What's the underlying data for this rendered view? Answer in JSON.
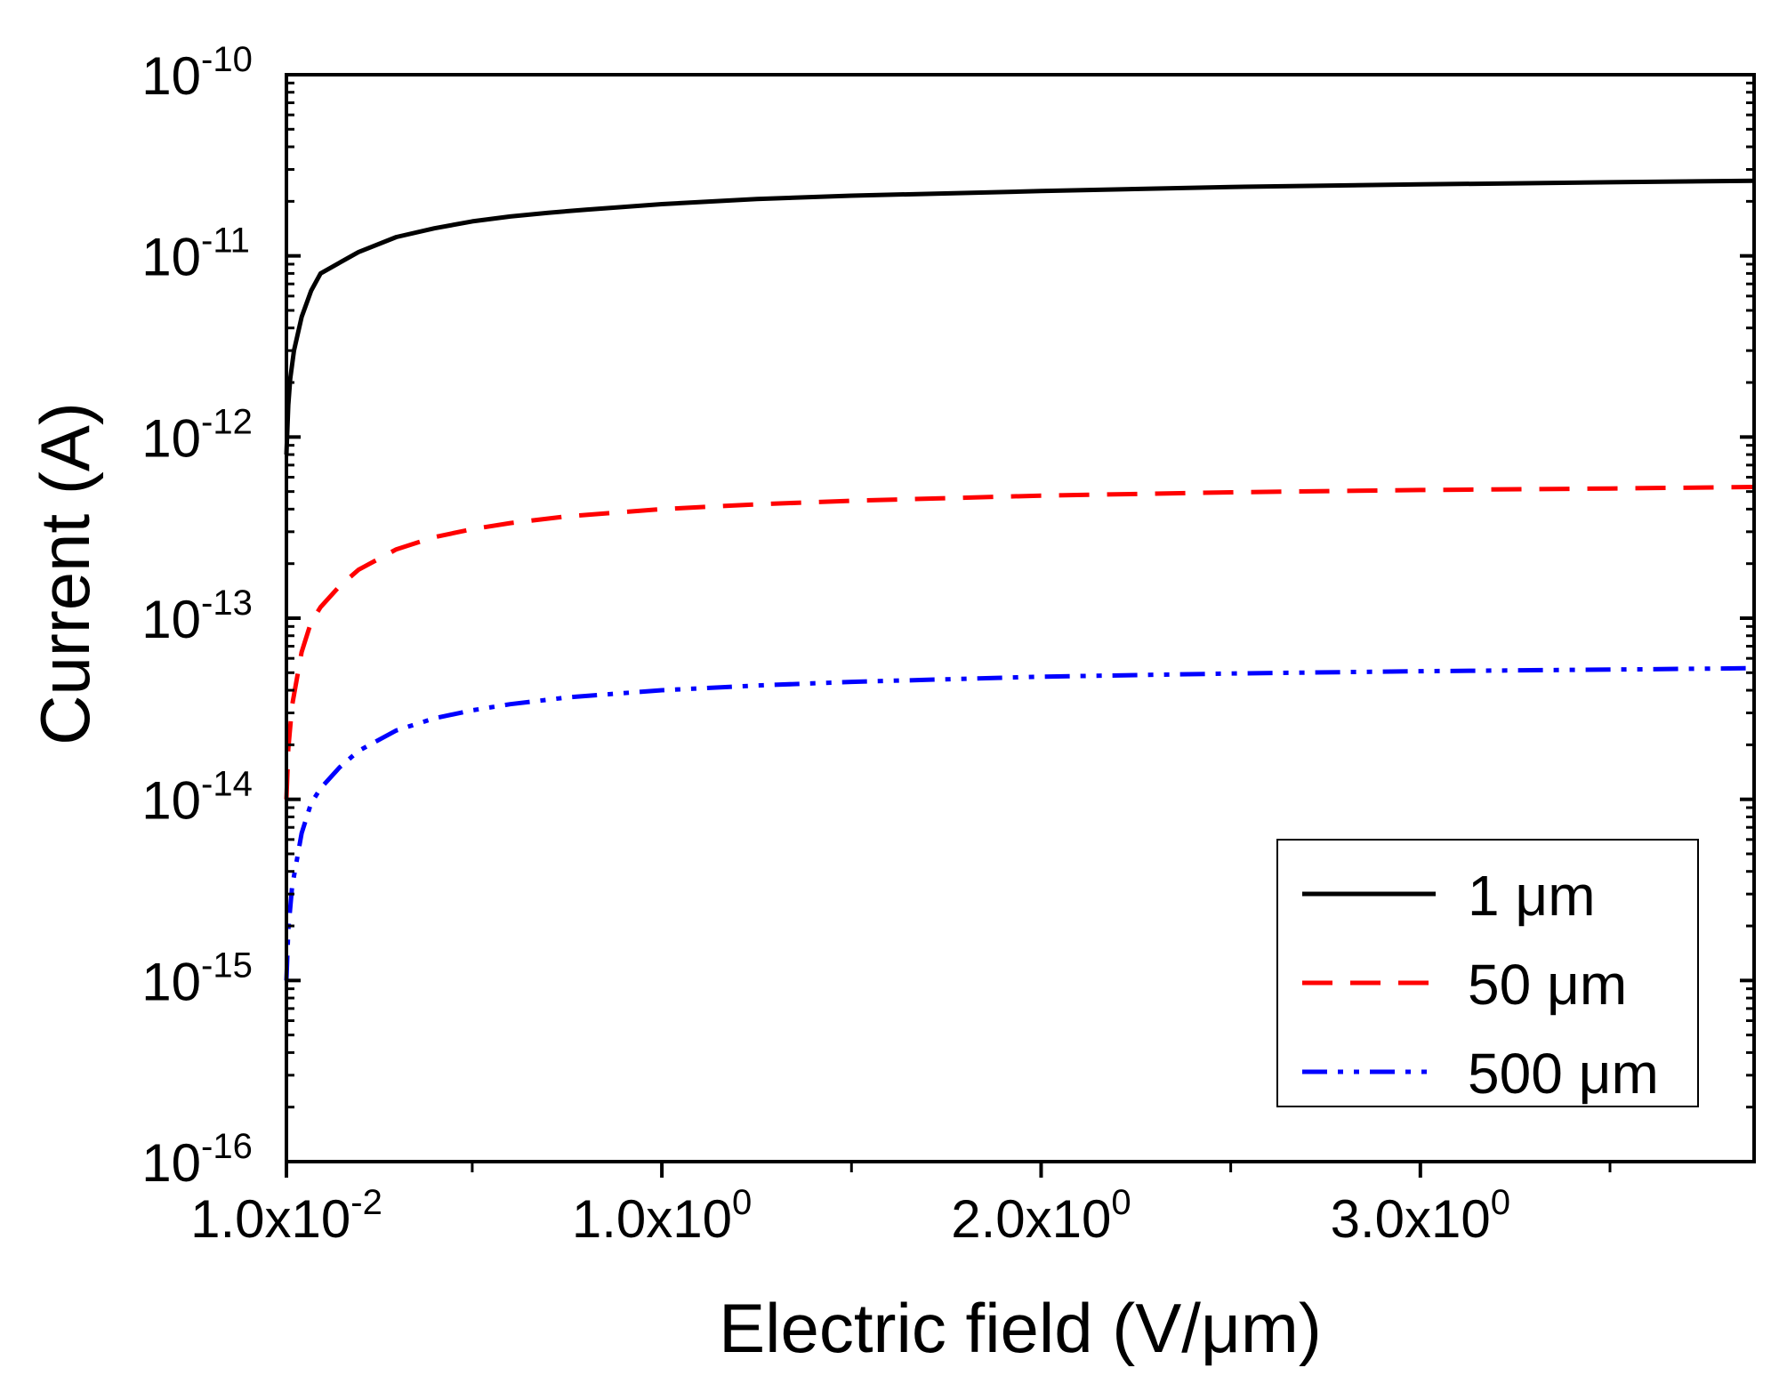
{
  "chart_data": {
    "type": "line",
    "title": "",
    "xlabel": "Electric field (V/μm)",
    "ylabel": "Current (A)",
    "xscale": "linear",
    "yscale": "log",
    "xlim": [
      0.01,
      3.88
    ],
    "ylim": [
      1e-16,
      1e-10
    ],
    "x_ticks": [
      {
        "value": 0.01,
        "mantissa": "1.0x10",
        "exp": "-2"
      },
      {
        "value": 1.0,
        "mantissa": "1.0x10",
        "exp": "0"
      },
      {
        "value": 2.0,
        "mantissa": "2.0x10",
        "exp": "0"
      },
      {
        "value": 3.0,
        "mantissa": "3.0x10",
        "exp": "0"
      }
    ],
    "y_ticks": [
      {
        "value": 1e-16,
        "mantissa": "10",
        "exp": "-16"
      },
      {
        "value": 1e-15,
        "mantissa": "10",
        "exp": "-15"
      },
      {
        "value": 1e-14,
        "mantissa": "10",
        "exp": "-14"
      },
      {
        "value": 1e-13,
        "mantissa": "10",
        "exp": "-13"
      },
      {
        "value": 1e-12,
        "mantissa": "10",
        "exp": "-12"
      },
      {
        "value": 1e-11,
        "mantissa": "10",
        "exp": "-11"
      },
      {
        "value": 1e-10,
        "mantissa": "10",
        "exp": "-10"
      }
    ],
    "legend_position": "bottom-right",
    "series": [
      {
        "name": "1 μm",
        "color": "#000000",
        "dash": "solid",
        "x": [
          0.01,
          0.015,
          0.02,
          0.03,
          0.05,
          0.075,
          0.1,
          0.2,
          0.3,
          0.4,
          0.5,
          0.6,
          0.7,
          0.8,
          1.0,
          1.25,
          1.5,
          2.0,
          2.5,
          3.0,
          3.5,
          3.88
        ],
        "y": [
          8e-13,
          1.5e-12,
          2.1e-12,
          3e-12,
          4.6e-12,
          6.4e-12,
          8e-12,
          1.05e-11,
          1.27e-11,
          1.42e-11,
          1.55e-11,
          1.65e-11,
          1.73e-11,
          1.8e-11,
          1.93e-11,
          2.06e-11,
          2.15e-11,
          2.28e-11,
          2.4e-11,
          2.48e-11,
          2.55e-11,
          2.6e-11
        ]
      },
      {
        "name": "50 μm",
        "color": "#ff0000",
        "dash": "dash",
        "x": [
          0.01,
          0.015,
          0.025,
          0.05,
          0.075,
          0.1,
          0.15,
          0.2,
          0.3,
          0.4,
          0.5,
          0.6,
          0.75,
          1.0,
          1.25,
          1.5,
          2.0,
          2.5,
          3.0,
          3.5,
          3.88
        ],
        "y": [
          1e-14,
          1.9e-14,
          3.3e-14,
          6.5e-14,
          9.5e-14,
          1.15e-13,
          1.5e-13,
          1.85e-13,
          2.4e-13,
          2.8e-13,
          3.1e-13,
          3.35e-13,
          3.65e-13,
          4e-13,
          4.25e-13,
          4.45e-13,
          4.75e-13,
          4.95e-13,
          5.1e-13,
          5.2e-13,
          5.3e-13
        ]
      },
      {
        "name": "500 μm",
        "color": "#0000ff",
        "dash": "dashdotdot",
        "x": [
          0.01,
          0.015,
          0.025,
          0.05,
          0.075,
          0.1,
          0.15,
          0.2,
          0.3,
          0.4,
          0.5,
          0.6,
          0.75,
          1.0,
          1.25,
          1.5,
          2.0,
          2.5,
          3.0,
          3.5,
          3.88
        ],
        "y": [
          1e-15,
          1.9e-15,
          3.3e-15,
          6.5e-15,
          9.5e-15,
          1.15e-14,
          1.5e-14,
          1.85e-14,
          2.4e-14,
          2.8e-14,
          3.1e-14,
          3.35e-14,
          3.65e-14,
          4e-14,
          4.25e-14,
          4.45e-14,
          4.75e-14,
          4.95e-14,
          5.1e-14,
          5.2e-14,
          5.3e-14
        ]
      }
    ]
  }
}
